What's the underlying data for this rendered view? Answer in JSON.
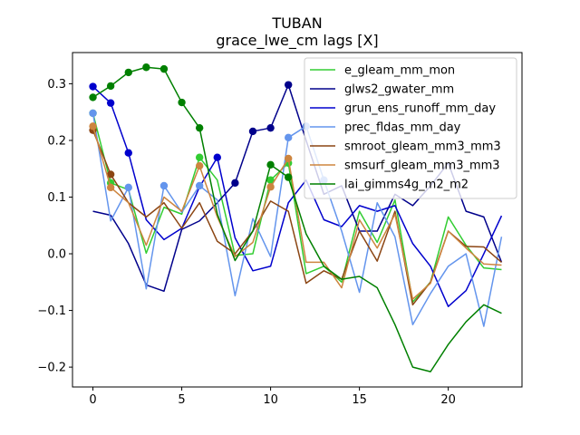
{
  "chart_data": {
    "type": "line",
    "title": "TUBAN",
    "subtitle": "grace_lwe_cm lags [X]",
    "xlabel": "",
    "ylabel": "",
    "xlim": [
      -1.15,
      24.15
    ],
    "ylim": [
      -0.235,
      0.355
    ],
    "xticks": [
      0,
      5,
      10,
      15,
      20
    ],
    "yticks": [
      -0.2,
      -0.1,
      0.0,
      0.1,
      0.2,
      0.3
    ],
    "x": [
      0,
      1,
      2,
      3,
      4,
      5,
      6,
      7,
      8,
      9,
      10,
      11,
      12,
      13,
      14,
      15,
      16,
      17,
      18,
      19,
      20,
      21,
      22,
      23
    ],
    "grid": false,
    "legend_position": "top-right",
    "series": [
      {
        "name": "e_gleam_mm_mon",
        "color": "#32cd32",
        "values": [
          0.248,
          0.125,
          0.113,
          0.001,
          0.082,
          0.07,
          0.17,
          0.13,
          -0.003,
          0.0,
          0.13,
          0.16,
          -0.035,
          -0.022,
          -0.05,
          0.075,
          0.02,
          0.095,
          -0.085,
          -0.05,
          0.065,
          0.015,
          -0.025,
          -0.028
        ],
        "markers": [
          0,
          1,
          6,
          10,
          11
        ]
      },
      {
        "name": "glws2_gwater_mm",
        "color": "#00008b",
        "values": [
          0.075,
          0.068,
          0.018,
          -0.055,
          -0.066,
          0.043,
          0.058,
          0.09,
          0.125,
          0.216,
          0.222,
          0.298,
          0.2,
          0.105,
          0.12,
          0.04,
          0.04,
          0.105,
          0.085,
          0.12,
          0.16,
          0.075,
          0.065,
          -0.015
        ],
        "markers": [
          8,
          9,
          10,
          11
        ]
      },
      {
        "name": "grun_ens_runoff_mm_day",
        "color": "#0000cd",
        "values": [
          0.295,
          0.266,
          0.178,
          0.06,
          0.025,
          0.045,
          0.118,
          0.17,
          0.028,
          -0.03,
          -0.022,
          0.09,
          0.13,
          0.06,
          0.048,
          0.085,
          0.075,
          0.085,
          0.018,
          -0.022,
          -0.093,
          -0.065,
          0.0,
          0.067
        ],
        "markers": [
          0,
          1,
          2,
          7
        ]
      },
      {
        "name": "prec_fldas_mm_day",
        "color": "#6495ed",
        "values": [
          0.248,
          0.058,
          0.117,
          -0.062,
          0.12,
          0.073,
          0.12,
          0.095,
          -0.074,
          0.062,
          -0.005,
          0.205,
          0.225,
          0.13,
          0.04,
          -0.068,
          0.09,
          0.03,
          -0.125,
          -0.07,
          -0.022,
          0.0,
          -0.128,
          0.03
        ],
        "markers": [
          0,
          2,
          4,
          6,
          11,
          12,
          13
        ]
      },
      {
        "name": "smroot_gleam_mm3_mm3",
        "color": "#8b4513",
        "values": [
          0.218,
          0.14,
          0.09,
          0.065,
          0.09,
          0.045,
          0.09,
          0.022,
          0.0,
          0.04,
          0.093,
          0.075,
          -0.052,
          -0.03,
          -0.045,
          0.04,
          -0.013,
          0.075,
          -0.09,
          -0.05,
          0.04,
          0.013,
          0.012,
          -0.015
        ],
        "markers": [
          0,
          1
        ]
      },
      {
        "name": "smsurf_gleam_mm3_mm3",
        "color": "#cd853f",
        "values": [
          0.225,
          0.117,
          0.09,
          0.015,
          0.1,
          0.075,
          0.155,
          0.065,
          -0.005,
          0.02,
          0.118,
          0.168,
          -0.015,
          -0.015,
          -0.06,
          0.06,
          0.01,
          0.07,
          -0.08,
          -0.052,
          0.04,
          0.01,
          -0.018,
          -0.02
        ],
        "markers": [
          0,
          1,
          6,
          10,
          11
        ]
      },
      {
        "name": "lai_gimms4g_m2_m2",
        "color": "#008000",
        "values": [
          0.276,
          0.296,
          0.32,
          0.329,
          0.326,
          0.267,
          0.222,
          0.07,
          -0.012,
          0.04,
          0.157,
          0.135,
          0.035,
          -0.022,
          -0.045,
          -0.04,
          -0.06,
          -0.125,
          -0.2,
          -0.208,
          -0.16,
          -0.12,
          -0.09,
          -0.105
        ],
        "markers": [
          0,
          1,
          2,
          3,
          4,
          5,
          6,
          10,
          11
        ]
      }
    ]
  }
}
